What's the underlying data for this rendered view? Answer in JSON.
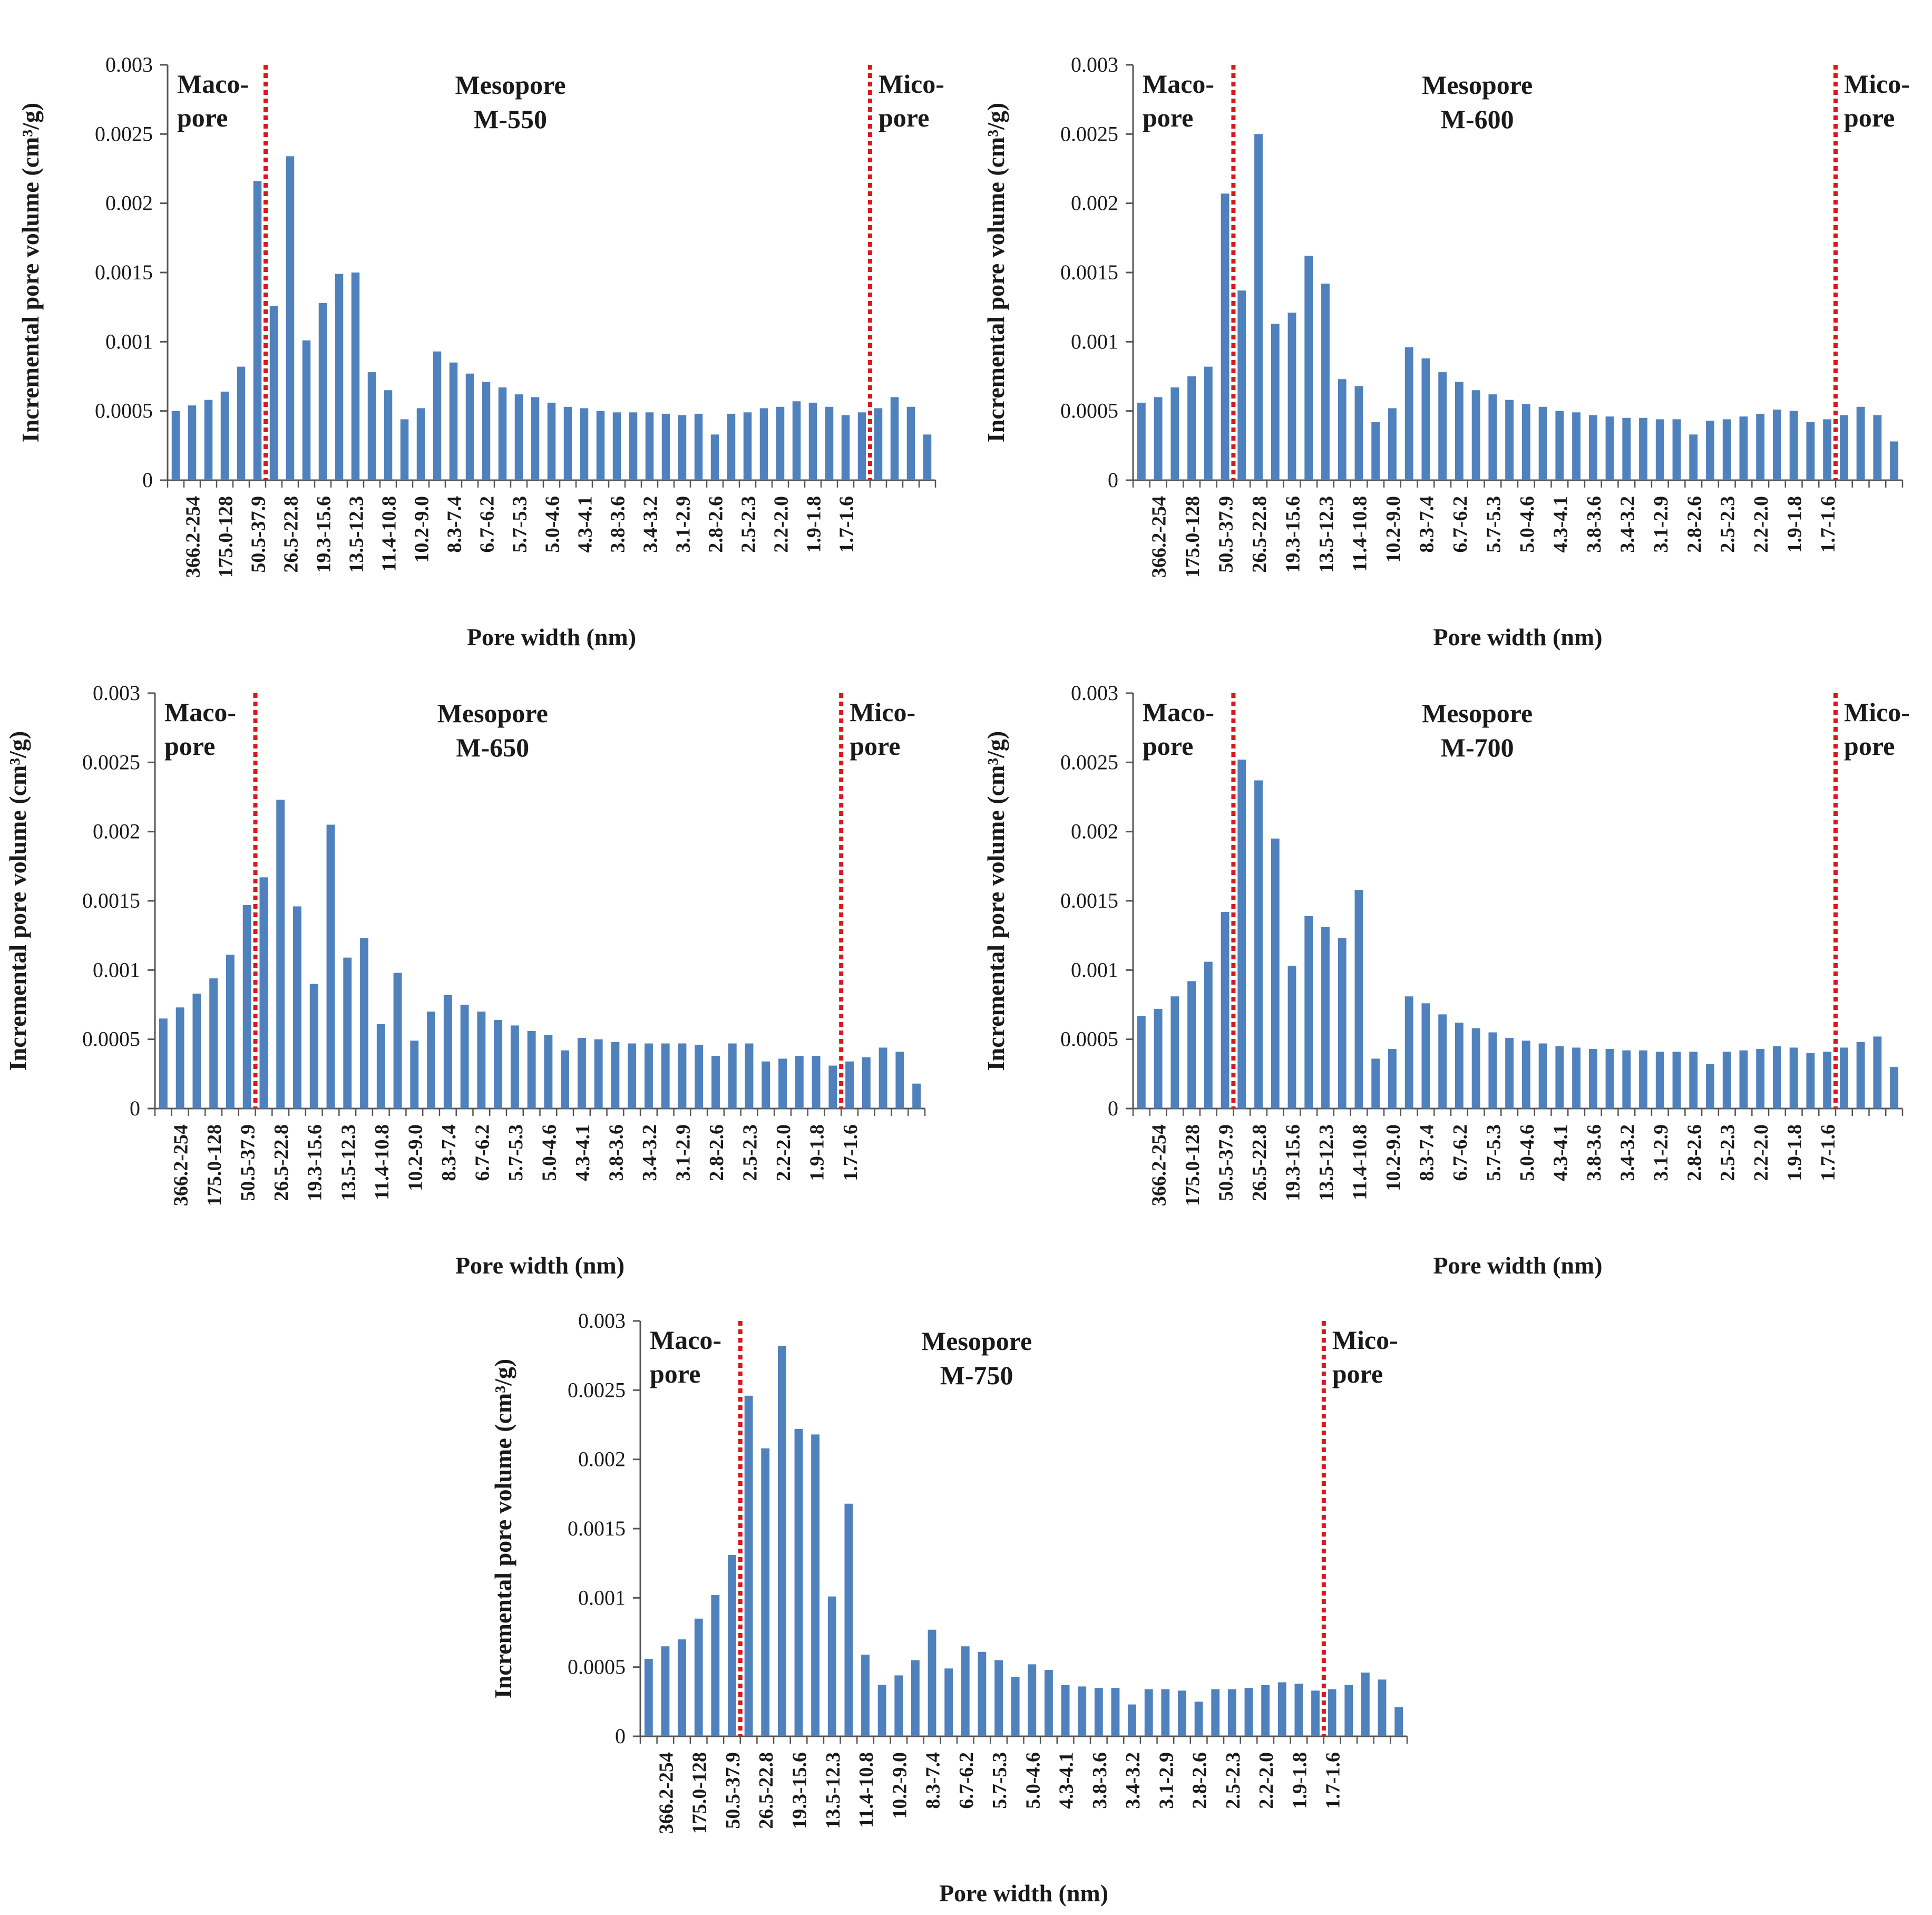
{
  "chart_data": [
    {
      "type": "bar",
      "title": "M-550",
      "xlabel": "Pore width (nm)",
      "ylabel": "Incremental pore volume (cm³/g)",
      "ylim": [
        0,
        0.003
      ],
      "yticks": [
        "0",
        "0.0005",
        "0.001",
        "0.0015",
        "0.002",
        "0.0025",
        "0.003"
      ],
      "tick_labels": [
        "366.2-254",
        "175.0-128",
        "50.5-37.9",
        "26.5-22.8",
        "19.3-15.6",
        "13.5-12.3",
        "11.4-10.8",
        "10.2-9.0",
        "8.3-7.4",
        "6.7-6.2",
        "5.7-5.3",
        "5.0-4.6",
        "4.3-4.1",
        "3.8-3.6",
        "3.4-3.2",
        "3.1-2.9",
        "2.8-2.6",
        "2.5-2.3",
        "2.2-2.0",
        "1.9-1.8",
        "1.7-1.6"
      ],
      "region_labels": {
        "macro": [
          "Maco-",
          "pore"
        ],
        "meso": "Mesopore",
        "micro": [
          "Mico-",
          "pore"
        ]
      },
      "boundaries_after_bar": [
        5.5,
        42.5
      ],
      "values": [
        0.0005,
        0.00054,
        0.00058,
        0.00064,
        0.00082,
        0.00216,
        0.00126,
        0.00234,
        0.00101,
        0.00128,
        0.00149,
        0.0015,
        0.00078,
        0.00065,
        0.00044,
        0.00052,
        0.00093,
        0.00085,
        0.00077,
        0.00071,
        0.00067,
        0.00062,
        0.0006,
        0.00056,
        0.00053,
        0.00052,
        0.0005,
        0.00049,
        0.00049,
        0.00049,
        0.00048,
        0.00047,
        0.00048,
        0.00033,
        0.00048,
        0.00049,
        0.00052,
        0.00053,
        0.00057,
        0.00056,
        0.00053,
        0.00047,
        0.00049,
        0.00052,
        0.0006,
        0.00053,
        0.00033
      ]
    },
    {
      "type": "bar",
      "title": "M-600",
      "xlabel": "Pore width (nm)",
      "ylabel": "Incremental pore volume (cm³/g)",
      "ylim": [
        0,
        0.003
      ],
      "yticks": [
        "0",
        "0.0005",
        "0.001",
        "0.0015",
        "0.002",
        "0.0025",
        "0.003"
      ],
      "tick_labels": [
        "366.2-254",
        "175.0-128",
        "50.5-37.9",
        "26.5-22.8",
        "19.3-15.6",
        "13.5-12.3",
        "11.4-10.8",
        "10.2-9.0",
        "8.3-7.4",
        "6.7-6.2",
        "5.7-5.3",
        "5.0-4.6",
        "4.3-4.1",
        "3.8-3.6",
        "3.4-3.2",
        "3.1-2.9",
        "2.8-2.6",
        "2.5-2.3",
        "2.2-2.0",
        "1.9-1.8",
        "1.7-1.6"
      ],
      "region_labels": {
        "macro": [
          "Maco-",
          "pore"
        ],
        "meso": "Mesopore",
        "micro": [
          "Mico-",
          "pore"
        ]
      },
      "boundaries_after_bar": [
        5.5,
        41.5
      ],
      "values": [
        0.00056,
        0.0006,
        0.00067,
        0.00075,
        0.00082,
        0.00207,
        0.00137,
        0.0025,
        0.00113,
        0.00121,
        0.00162,
        0.00142,
        0.00073,
        0.00068,
        0.00042,
        0.00052,
        0.00096,
        0.00088,
        0.00078,
        0.00071,
        0.00065,
        0.00062,
        0.00058,
        0.00055,
        0.00053,
        0.0005,
        0.00049,
        0.00047,
        0.00046,
        0.00045,
        0.00045,
        0.00044,
        0.00044,
        0.00033,
        0.00043,
        0.00044,
        0.00046,
        0.00048,
        0.00051,
        0.0005,
        0.00042,
        0.00044,
        0.00047,
        0.00053,
        0.00047,
        0.00028
      ]
    },
    {
      "type": "bar",
      "title": "M-650",
      "xlabel": "Pore width (nm)",
      "ylabel": "Incremental pore volume (cm³/g)",
      "ylim": [
        0,
        0.003
      ],
      "yticks": [
        "0",
        "0.0005",
        "0.001",
        "0.0015",
        "0.002",
        "0.0025",
        "0.003"
      ],
      "tick_labels": [
        "366.2-254",
        "175.0-128",
        "50.5-37.9",
        "26.5-22.8",
        "19.3-15.6",
        "13.5-12.3",
        "11.4-10.8",
        "10.2-9.0",
        "8.3-7.4",
        "6.7-6.2",
        "5.7-5.3",
        "5.0-4.6",
        "4.3-4.1",
        "3.8-3.6",
        "3.4-3.2",
        "3.1-2.9",
        "2.8-2.6",
        "2.5-2.3",
        "2.2-2.0",
        "1.9-1.8",
        "1.7-1.6"
      ],
      "region_labels": {
        "macro": [
          "Maco-",
          "pore"
        ],
        "meso": "Mesopore",
        "micro": [
          "Mico-",
          "pore"
        ]
      },
      "boundaries_after_bar": [
        5.5,
        40.5
      ],
      "values": [
        0.00065,
        0.00073,
        0.00083,
        0.00094,
        0.00111,
        0.00147,
        0.00167,
        0.00223,
        0.00146,
        0.0009,
        0.00205,
        0.00109,
        0.00123,
        0.00061,
        0.00098,
        0.00049,
        0.0007,
        0.00082,
        0.00075,
        0.0007,
        0.00064,
        0.0006,
        0.00056,
        0.00053,
        0.00042,
        0.00051,
        0.0005,
        0.00048,
        0.00047,
        0.00047,
        0.00047,
        0.00047,
        0.00046,
        0.00038,
        0.00047,
        0.00047,
        0.00034,
        0.00036,
        0.00038,
        0.00038,
        0.00031,
        0.00034,
        0.00037,
        0.00044,
        0.00041,
        0.00018
      ]
    },
    {
      "type": "bar",
      "title": "M-700",
      "xlabel": "Pore width (nm)",
      "ylabel": "Incremental pore volume (cm³/g)",
      "ylim": [
        0,
        0.003
      ],
      "yticks": [
        "0",
        "0.0005",
        "0.001",
        "0.0015",
        "0.002",
        "0.0025",
        "0.003"
      ],
      "tick_labels": [
        "366.2-254",
        "175.0-128",
        "50.5-37.9",
        "26.5-22.8",
        "19.3-15.6",
        "13.5-12.3",
        "11.4-10.8",
        "10.2-9.0",
        "8.3-7.4",
        "6.7-6.2",
        "5.7-5.3",
        "5.0-4.6",
        "4.3-4.1",
        "3.8-3.6",
        "3.4-3.2",
        "3.1-2.9",
        "2.8-2.6",
        "2.5-2.3",
        "2.2-2.0",
        "1.9-1.8",
        "1.7-1.6"
      ],
      "region_labels": {
        "macro": [
          "Maco-",
          "pore"
        ],
        "meso": "Mesopore",
        "micro": [
          "Mico-",
          "pore"
        ]
      },
      "boundaries_after_bar": [
        5.5,
        41.5
      ],
      "values": [
        0.00067,
        0.00072,
        0.00081,
        0.00092,
        0.00106,
        0.00142,
        0.00252,
        0.00237,
        0.00195,
        0.00103,
        0.00139,
        0.00131,
        0.00123,
        0.00158,
        0.00036,
        0.00043,
        0.00081,
        0.00076,
        0.00068,
        0.00062,
        0.00058,
        0.00055,
        0.00051,
        0.00049,
        0.00047,
        0.00045,
        0.00044,
        0.00043,
        0.00043,
        0.00042,
        0.00042,
        0.00041,
        0.00041,
        0.00041,
        0.00032,
        0.00041,
        0.00042,
        0.00043,
        0.00045,
        0.00044,
        0.0004,
        0.00041,
        0.00044,
        0.00048,
        0.00052,
        0.0003
      ]
    },
    {
      "type": "bar",
      "title": "M-750",
      "xlabel": "Pore width (nm)",
      "ylabel": "Incremental pore volume (cm³/g)",
      "ylim": [
        0,
        0.003
      ],
      "yticks": [
        "0",
        "0.0005",
        "0.001",
        "0.0015",
        "0.002",
        "0.0025",
        "0.003"
      ],
      "tick_labels": [
        "366.2-254",
        "175.0-128",
        "50.5-37.9",
        "26.5-22.8",
        "19.3-15.6",
        "13.5-12.3",
        "11.4-10.8",
        "10.2-9.0",
        "8.3-7.4",
        "6.7-6.2",
        "5.7-5.3",
        "5.0-4.6",
        "4.3-4.1",
        "3.8-3.6",
        "3.4-3.2",
        "3.1-2.9",
        "2.8-2.6",
        "2.5-2.3",
        "2.2-2.0",
        "1.9-1.8",
        "1.7-1.6"
      ],
      "region_labels": {
        "macro": [
          "Maco-",
          "pore"
        ],
        "meso": "Mesopore",
        "micro": [
          "Mico-",
          "pore"
        ]
      },
      "boundaries_after_bar": [
        5.5,
        40.5
      ],
      "values": [
        0.00056,
        0.00065,
        0.0007,
        0.00085,
        0.00102,
        0.00131,
        0.00246,
        0.00208,
        0.00282,
        0.00222,
        0.00218,
        0.00101,
        0.00168,
        0.00059,
        0.00037,
        0.00044,
        0.00055,
        0.00077,
        0.00049,
        0.00065,
        0.00061,
        0.00055,
        0.00043,
        0.00052,
        0.00048,
        0.00037,
        0.00036,
        0.00035,
        0.00035,
        0.00023,
        0.00034,
        0.00034,
        0.00033,
        0.00025,
        0.00034,
        0.00034,
        0.00035,
        0.00037,
        0.00039,
        0.00038,
        0.00033,
        0.00034,
        0.00037,
        0.00046,
        0.00041,
        0.00021
      ]
    }
  ],
  "colors": {
    "bar": "#4f81bd",
    "boundary_line": "#d7191c",
    "axis": "#555555",
    "text": "#1a1a1a"
  }
}
